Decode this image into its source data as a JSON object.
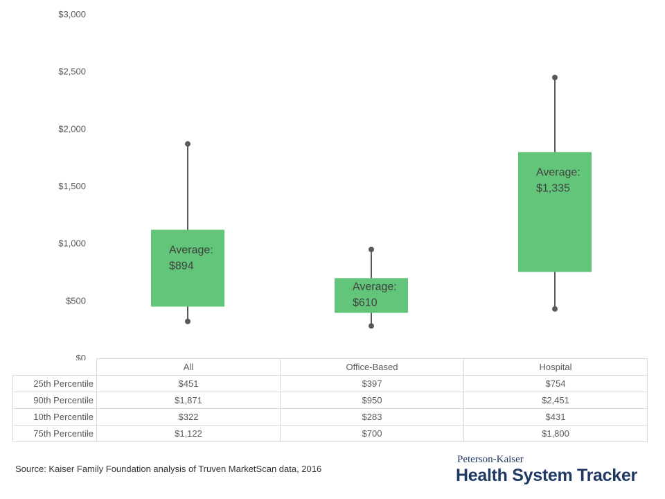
{
  "chart_data": {
    "type": "box",
    "categories": [
      "All",
      "Office-Based",
      "Hospital"
    ],
    "ylim": [
      0,
      3000
    ],
    "yticks": [
      "$0",
      "$500",
      "$1,000",
      "$1,500",
      "$2,000",
      "$2,500",
      "$3,000"
    ],
    "ytick_values": [
      0,
      500,
      1000,
      1500,
      2000,
      2500,
      3000
    ],
    "p10": [
      322,
      283,
      431
    ],
    "p25": [
      451,
      397,
      754
    ],
    "p75": [
      1122,
      700,
      1800
    ],
    "p90": [
      1871,
      950,
      2451
    ],
    "average_label": "Average:",
    "averages": [
      "$894",
      "$610",
      "$1,335"
    ],
    "box_color": "#63c57a",
    "whisker_color": "#595959",
    "grid": false
  },
  "table": {
    "rows": [
      {
        "label": "25th Percentile",
        "values": [
          "$451",
          "$397",
          "$754"
        ]
      },
      {
        "label": "90th Percentile",
        "values": [
          "$1,871",
          "$950",
          "$2,451"
        ]
      },
      {
        "label": "10th Percentile",
        "values": [
          "$322",
          "$283",
          "$431"
        ]
      },
      {
        "label": "75th Percentile",
        "values": [
          "$1,122",
          "$700",
          "$1,800"
        ]
      }
    ]
  },
  "source": "Source: Kaiser Family Foundation analysis of Truven MarketScan data, 2016",
  "brand": {
    "top": "Peterson-Kaiser",
    "main": "Health System Tracker"
  }
}
